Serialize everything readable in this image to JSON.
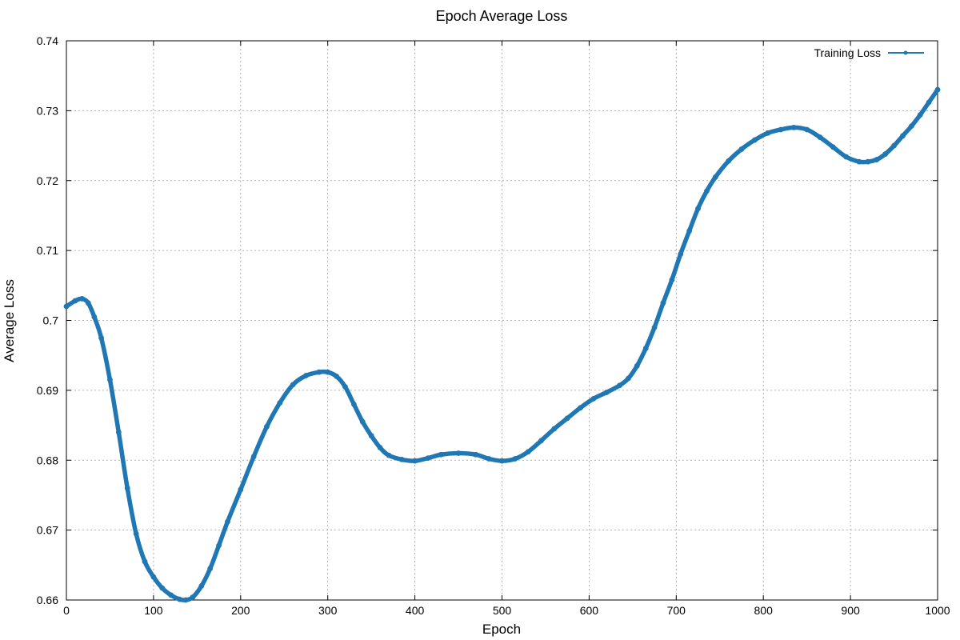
{
  "chart_data": {
    "type": "line",
    "title": "Epoch Average Loss",
    "xlabel": "Epoch",
    "ylabel": "Average Loss",
    "xlim": [
      0,
      1000
    ],
    "ylim": [
      0.66,
      0.74
    ],
    "xticks": [
      0,
      100,
      200,
      300,
      400,
      500,
      600,
      700,
      800,
      900,
      1000
    ],
    "yticks": [
      0.66,
      0.67,
      0.68,
      0.69,
      0.7,
      0.71,
      0.72,
      0.73,
      0.74
    ],
    "ytick_labels": [
      "0.66",
      "0.67",
      "0.68",
      "0.69",
      "0.7",
      "0.71",
      "0.72",
      "0.73",
      "0.74"
    ],
    "grid": true,
    "legend_position": "top-right",
    "series": [
      {
        "name": "Training Loss",
        "color": "#1f77b4",
        "marker": "circle",
        "points": [
          [
            0,
            0.702
          ],
          [
            10,
            0.7028
          ],
          [
            18,
            0.7031
          ],
          [
            25,
            0.7025
          ],
          [
            32,
            0.7005
          ],
          [
            40,
            0.6975
          ],
          [
            50,
            0.6915
          ],
          [
            60,
            0.684
          ],
          [
            70,
            0.676
          ],
          [
            80,
            0.6695
          ],
          [
            90,
            0.6655
          ],
          [
            100,
            0.6633
          ],
          [
            110,
            0.6617
          ],
          [
            120,
            0.6607
          ],
          [
            130,
            0.6601
          ],
          [
            137,
            0.66
          ],
          [
            145,
            0.6604
          ],
          [
            155,
            0.662
          ],
          [
            165,
            0.6645
          ],
          [
            175,
            0.6678
          ],
          [
            185,
            0.6712
          ],
          [
            200,
            0.6758
          ],
          [
            215,
            0.6805
          ],
          [
            230,
            0.6848
          ],
          [
            245,
            0.6882
          ],
          [
            260,
            0.6908
          ],
          [
            275,
            0.6921
          ],
          [
            290,
            0.6926
          ],
          [
            300,
            0.6926
          ],
          [
            310,
            0.692
          ],
          [
            320,
            0.6905
          ],
          [
            330,
            0.688
          ],
          [
            340,
            0.6855
          ],
          [
            350,
            0.6835
          ],
          [
            360,
            0.6818
          ],
          [
            370,
            0.6807
          ],
          [
            385,
            0.6801
          ],
          [
            400,
            0.6799
          ],
          [
            415,
            0.6803
          ],
          [
            430,
            0.6808
          ],
          [
            450,
            0.681
          ],
          [
            470,
            0.6808
          ],
          [
            485,
            0.6802
          ],
          [
            500,
            0.6799
          ],
          [
            515,
            0.6802
          ],
          [
            530,
            0.6812
          ],
          [
            545,
            0.6828
          ],
          [
            560,
            0.6845
          ],
          [
            575,
            0.686
          ],
          [
            590,
            0.6875
          ],
          [
            605,
            0.6888
          ],
          [
            620,
            0.6897
          ],
          [
            635,
            0.6907
          ],
          [
            645,
            0.6917
          ],
          [
            655,
            0.6935
          ],
          [
            665,
            0.696
          ],
          [
            675,
            0.699
          ],
          [
            685,
            0.7025
          ],
          [
            695,
            0.7058
          ],
          [
            705,
            0.7095
          ],
          [
            715,
            0.7128
          ],
          [
            725,
            0.716
          ],
          [
            735,
            0.7185
          ],
          [
            745,
            0.7205
          ],
          [
            760,
            0.7228
          ],
          [
            775,
            0.7245
          ],
          [
            790,
            0.7258
          ],
          [
            805,
            0.7268
          ],
          [
            820,
            0.7273
          ],
          [
            835,
            0.7276
          ],
          [
            850,
            0.7273
          ],
          [
            865,
            0.7262
          ],
          [
            880,
            0.7248
          ],
          [
            895,
            0.7234
          ],
          [
            910,
            0.7227
          ],
          [
            920,
            0.7227
          ],
          [
            930,
            0.723
          ],
          [
            940,
            0.7238
          ],
          [
            950,
            0.725
          ],
          [
            960,
            0.7264
          ],
          [
            970,
            0.7278
          ],
          [
            980,
            0.7294
          ],
          [
            990,
            0.7312
          ],
          [
            1000,
            0.733
          ]
        ]
      }
    ]
  }
}
